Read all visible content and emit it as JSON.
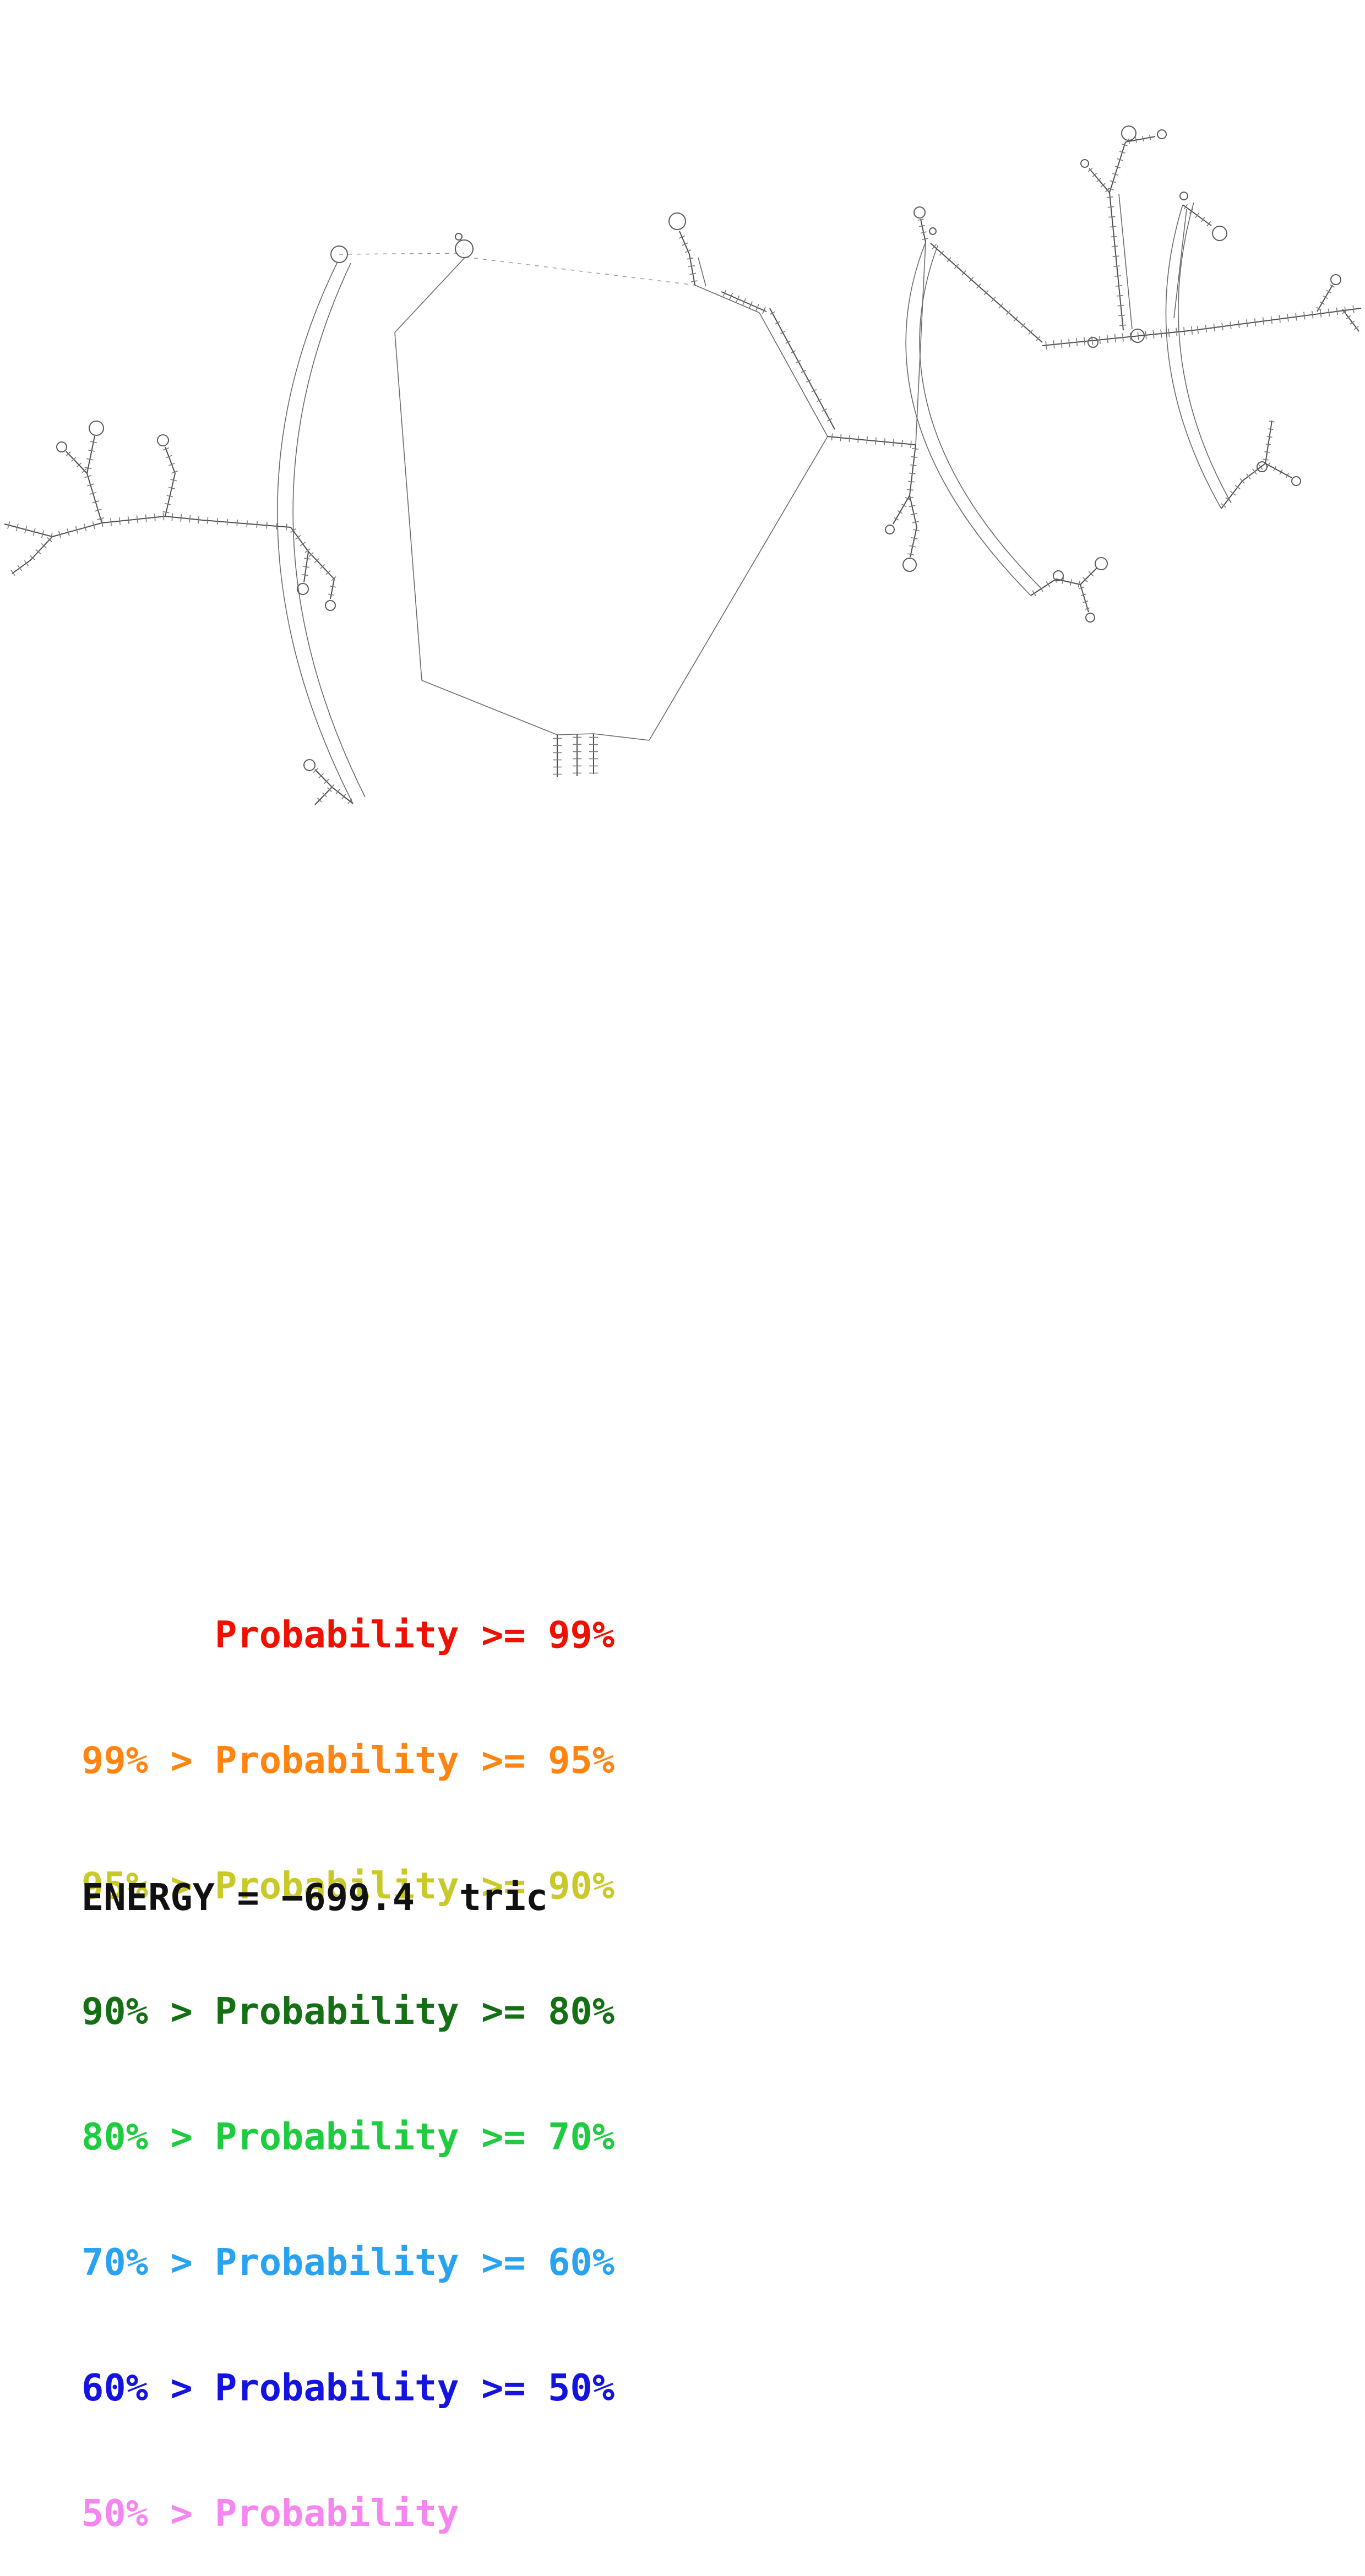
{
  "diagram": {
    "description": "RNA secondary structure probability plot",
    "backbone_color": "#4d4d4d",
    "tick_color": "#7a7a7a"
  },
  "legend": {
    "entries": [
      {
        "text": "      Probability >= 99%",
        "color": "#ee1100"
      },
      {
        "text": "99% > Probability >= 95%",
        "color": "#ff8411"
      },
      {
        "text": "95% > Probability >= 90%",
        "color": "#c9c92a"
      },
      {
        "text": "90% > Probability >= 80%",
        "color": "#157015"
      },
      {
        "text": "80% > Probability >= 70%",
        "color": "#1fcc3f"
      },
      {
        "text": "70% > Probability >= 60%",
        "color": "#29a3f0"
      },
      {
        "text": "60% > Probability >= 50%",
        "color": "#1414e0"
      },
      {
        "text": "50% > Probability",
        "color": "#f585ef"
      }
    ]
  },
  "footer": {
    "energy_text": "ENERGY = −699.4  tric",
    "color": "#111111"
  }
}
